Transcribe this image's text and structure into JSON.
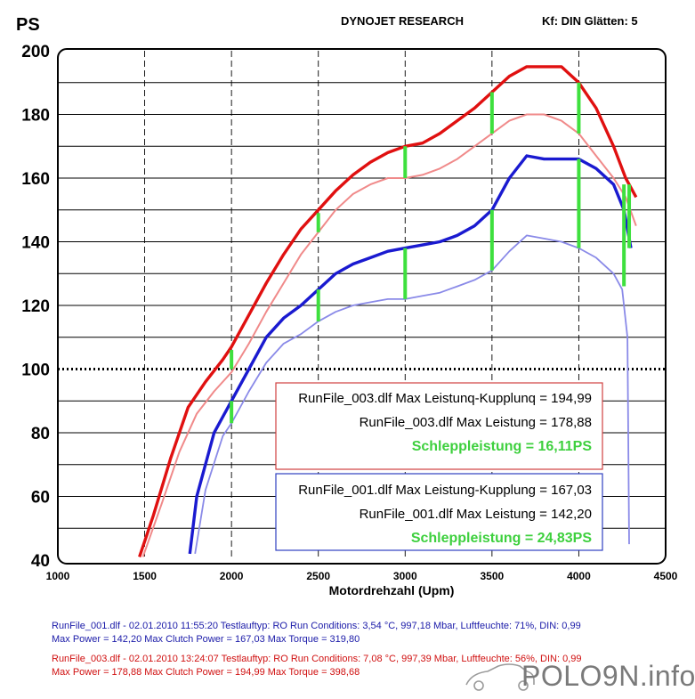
{
  "header": {
    "unit_label": "PS",
    "center_title": "DYNOJET RESEARCH",
    "right_info": "Kf: DIN  Glätten: 5"
  },
  "colors": {
    "red_main": "#e01010",
    "red_light": "#f08a8a",
    "blue_main": "#1a1ad0",
    "blue_light": "#8a8ae8",
    "green_marker": "#3ee03e",
    "info_blue": "#1a1aa8",
    "info_red": "#d01010"
  },
  "legend_red": {
    "line1": "RunFile_003.dlf Max Leistunq-Kupplunq = 194,99",
    "line2": "RunFile_003.dlf Max Leistung = 178,88",
    "line3": "Schleppleistung = 16,11PS"
  },
  "legend_blue": {
    "line1": "RunFile_001.dlf Max Leistung-Kupplung = 167,03",
    "line2": "RunFile_001.dlf Max Leistung = 142,20",
    "line3": "Schleppleistung = 24,83PS"
  },
  "run_info": {
    "blue_line1": "RunFile_001.dlf - 02.01.2010 11:55:20  Testlauftyp: RO  Run Conditions: 3,54 °C, 997,18 Mbar,  Luftfeuchte: 71%, DIN: 0,99",
    "blue_line2": "Max Power = 142,20  Max Clutch Power = 167,03  Max Torque = 319,80",
    "red_line1": "RunFile_003.dlf - 02.01.2010 13:24:07  Testlauftyp: RO  Run Conditions: 7,08 °C, 997,39 Mbar,  Luftfeuchte: 56%, DIN: 0,99",
    "red_line2": "Max Power = 178,88  Max Clutch Power = 194,99  Max Torque = 398,68"
  },
  "watermark": {
    "text": "POLO9N.info",
    "icon": "car-silhouette-icon"
  },
  "chart_data": {
    "type": "line",
    "title": "DYNOJET RESEARCH",
    "xlabel": "Motordrehzahl (Upm)",
    "ylabel": "PS",
    "xlim": [
      1000,
      4500
    ],
    "ylim": [
      40,
      200
    ],
    "x_ticks": [
      "1000",
      "1500",
      "2000",
      "2500",
      "3000",
      "3500",
      "4000",
      "4500"
    ],
    "y_ticks": [
      "40",
      "60",
      "80",
      "100",
      "120",
      "140",
      "160",
      "180",
      "200"
    ],
    "grid": true,
    "series": [
      {
        "name": "RunFile_003.dlf Max Leistunq-Kupplunq",
        "style": "red_main",
        "x": [
          1470,
          1550,
          1650,
          1750,
          1850,
          1950,
          2000,
          2100,
          2200,
          2300,
          2400,
          2500,
          2600,
          2700,
          2800,
          2900,
          3000,
          3100,
          3200,
          3300,
          3400,
          3500,
          3600,
          3700,
          3800,
          3900,
          4000,
          4100,
          4200,
          4270,
          4330
        ],
        "y": [
          41,
          54,
          72,
          88,
          96,
          103,
          107,
          117,
          127,
          136,
          144,
          150,
          156,
          161,
          165,
          168,
          170,
          171,
          174,
          178,
          182,
          187,
          192,
          195,
          195,
          195,
          190,
          182,
          170,
          160,
          154
        ]
      },
      {
        "name": "RunFile_003.dlf Max Leistung",
        "style": "red_light",
        "x": [
          1490,
          1600,
          1700,
          1800,
          1900,
          2000,
          2100,
          2200,
          2300,
          2400,
          2500,
          2600,
          2700,
          2800,
          2900,
          3000,
          3100,
          3200,
          3300,
          3400,
          3500,
          3600,
          3700,
          3800,
          3900,
          4000,
          4100,
          4200,
          4270,
          4330
        ],
        "y": [
          41,
          58,
          74,
          86,
          93,
          99,
          108,
          118,
          127,
          136,
          143,
          150,
          155,
          158,
          160,
          160,
          161,
          163,
          166,
          170,
          174,
          178,
          180,
          180,
          178,
          174,
          167,
          160,
          154,
          145
        ]
      },
      {
        "name": "RunFile_001.dlf Max Leistung-Kupplung",
        "style": "blue_main",
        "x": [
          1760,
          1800,
          1900,
          2000,
          2100,
          2200,
          2300,
          2400,
          2500,
          2600,
          2700,
          2800,
          2900,
          3000,
          3100,
          3200,
          3300,
          3400,
          3500,
          3600,
          3700,
          3800,
          3900,
          4000,
          4100,
          4200,
          4260,
          4300
        ],
        "y": [
          42,
          60,
          80,
          90,
          100,
          110,
          116,
          120,
          125,
          130,
          133,
          135,
          137,
          138,
          139,
          140,
          142,
          145,
          150,
          160,
          167,
          166,
          166,
          166,
          163,
          158,
          150,
          138
        ]
      },
      {
        "name": "RunFile_001.dlf Max Leistung",
        "style": "blue_light",
        "x": [
          1790,
          1850,
          1950,
          2000,
          2100,
          2200,
          2300,
          2400,
          2500,
          2600,
          2700,
          2800,
          2900,
          3000,
          3100,
          3200,
          3300,
          3400,
          3500,
          3600,
          3700,
          3800,
          3900,
          4000,
          4100,
          4200,
          4250,
          4280,
          4290
        ],
        "y": [
          42,
          62,
          79,
          83,
          93,
          102,
          108,
          111,
          115,
          118,
          120,
          121,
          122,
          122,
          123,
          124,
          126,
          128,
          131,
          137,
          142,
          141,
          140,
          138,
          135,
          130,
          125,
          110,
          45
        ]
      }
    ],
    "markers": [
      {
        "x": 2000,
        "y_top": 106,
        "y_bottom": 100
      },
      {
        "x": 2500,
        "y_top": 149,
        "y_bottom": 143
      },
      {
        "x": 3000,
        "y_top": 170,
        "y_bottom": 160
      },
      {
        "x": 3500,
        "y_top": 187,
        "y_bottom": 174
      },
      {
        "x": 4000,
        "y_top": 190,
        "y_bottom": 174
      },
      {
        "x": 2000,
        "y_top": 90,
        "y_bottom": 83
      },
      {
        "x": 2500,
        "y_top": 125,
        "y_bottom": 115
      },
      {
        "x": 3000,
        "y_top": 138,
        "y_bottom": 122
      },
      {
        "x": 3500,
        "y_top": 150,
        "y_bottom": 131
      },
      {
        "x": 4000,
        "y_top": 166,
        "y_bottom": 138
      },
      {
        "x": 4260,
        "y_top": 158,
        "y_bottom": 126
      },
      {
        "x": 4290,
        "y_top": 158,
        "y_bottom": 138
      }
    ]
  }
}
